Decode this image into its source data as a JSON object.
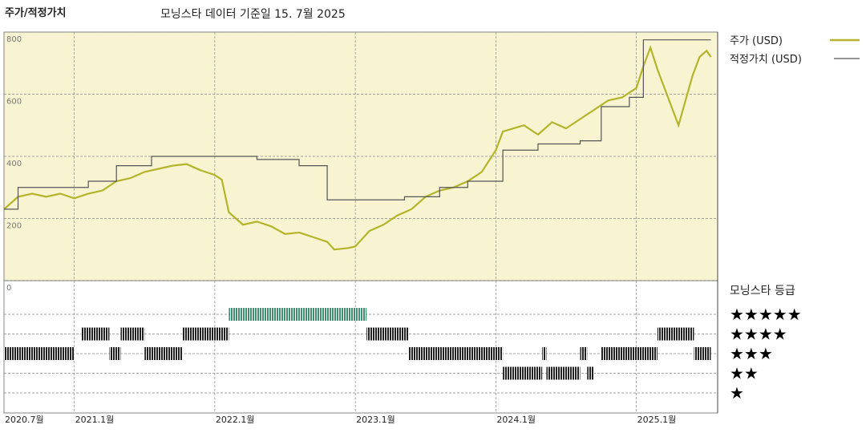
{
  "chart_data": [
    {
      "type": "line",
      "title": "주가/적정가치",
      "subtitle": "모닝스타 데이터 기준일 15. 7월 2025",
      "xlim": [
        2020.5,
        2025.55
      ],
      "xticks": [
        {
          "value": 2020.5,
          "label": "2020.7월"
        },
        {
          "value": 2021.0,
          "label": "2021.1월"
        },
        {
          "value": 2022.0,
          "label": "2022.1월"
        },
        {
          "value": 2023.0,
          "label": "2023.1월"
        },
        {
          "value": 2024.0,
          "label": "2024.1월"
        },
        {
          "value": 2025.0,
          "label": "2025.1월"
        }
      ],
      "ylim": [
        0,
        800
      ],
      "yticks": [
        0,
        200,
        400,
        600,
        800
      ],
      "grid": true,
      "background": "#f8f4d2",
      "series": [
        {
          "name": "주가 (USD)",
          "color": "#b4b42a",
          "x": [
            2020.5,
            2020.6,
            2020.7,
            2020.8,
            2020.9,
            2021.0,
            2021.1,
            2021.2,
            2021.3,
            2021.4,
            2021.5,
            2021.6,
            2021.7,
            2021.8,
            2021.9,
            2022.0,
            2022.05,
            2022.1,
            2022.2,
            2022.3,
            2022.4,
            2022.5,
            2022.6,
            2022.7,
            2022.8,
            2022.85,
            2022.95,
            2023.0,
            2023.1,
            2023.2,
            2023.3,
            2023.4,
            2023.5,
            2023.6,
            2023.7,
            2023.8,
            2023.9,
            2024.0,
            2024.05,
            2024.2,
            2024.3,
            2024.4,
            2024.5,
            2024.6,
            2024.7,
            2024.8,
            2024.9,
            2025.0,
            2025.05,
            2025.1,
            2025.15,
            2025.2,
            2025.25,
            2025.3,
            2025.35,
            2025.4,
            2025.45,
            2025.5,
            2025.53
          ],
          "values": [
            230,
            270,
            280,
            270,
            280,
            265,
            280,
            290,
            320,
            330,
            350,
            360,
            370,
            375,
            355,
            340,
            325,
            220,
            180,
            190,
            175,
            150,
            155,
            140,
            125,
            100,
            105,
            110,
            160,
            180,
            210,
            230,
            270,
            290,
            300,
            320,
            350,
            420,
            480,
            500,
            470,
            510,
            490,
            520,
            550,
            580,
            590,
            620,
            690,
            750,
            680,
            620,
            560,
            500,
            580,
            660,
            720,
            740,
            720
          ]
        },
        {
          "name": "적정가치 (USD)",
          "color": "#555555",
          "x": [
            2020.5,
            2020.6,
            2020.6,
            2021.1,
            2021.1,
            2021.3,
            2021.3,
            2021.55,
            2021.55,
            2022.3,
            2022.3,
            2022.6,
            2022.6,
            2022.8,
            2022.8,
            2023.35,
            2023.35,
            2023.6,
            2023.6,
            2023.8,
            2023.8,
            2024.05,
            2024.05,
            2024.3,
            2024.3,
            2024.6,
            2024.6,
            2024.75,
            2024.75,
            2024.95,
            2024.95,
            2025.05,
            2025.05,
            2025.53
          ],
          "values": [
            230,
            230,
            300,
            300,
            320,
            320,
            370,
            370,
            400,
            400,
            390,
            390,
            370,
            370,
            260,
            260,
            270,
            270,
            300,
            300,
            320,
            320,
            420,
            420,
            440,
            440,
            450,
            450,
            560,
            560,
            590,
            590,
            775,
            775
          ]
        }
      ]
    },
    {
      "type": "timeline",
      "title": "모닝스타 등급",
      "levels": [
        "★",
        "★★",
        "★★★",
        "★★★★",
        "★★★★★"
      ],
      "level_colors": [
        "#222222",
        "#222222",
        "#222222",
        "#222222",
        "#3f8f6f"
      ],
      "start": [
        2020.5,
        2021.05,
        2021.25,
        2021.33,
        2021.5,
        2021.77,
        2022.1,
        2023.08,
        2023.38,
        2024.05,
        2024.33,
        2024.36,
        2024.6,
        2024.65,
        2024.75,
        2025.15,
        2025.41
      ],
      "end": [
        2021.0,
        2021.25,
        2021.33,
        2021.5,
        2021.77,
        2022.1,
        2023.08,
        2023.38,
        2024.05,
        2024.33,
        2024.36,
        2024.6,
        2024.65,
        2024.7,
        2025.15,
        2025.41,
        2025.53
      ],
      "values": [
        3,
        4,
        3,
        4,
        3,
        4,
        5,
        4,
        3,
        2,
        3,
        2,
        3,
        2,
        3,
        4,
        3
      ]
    }
  ]
}
